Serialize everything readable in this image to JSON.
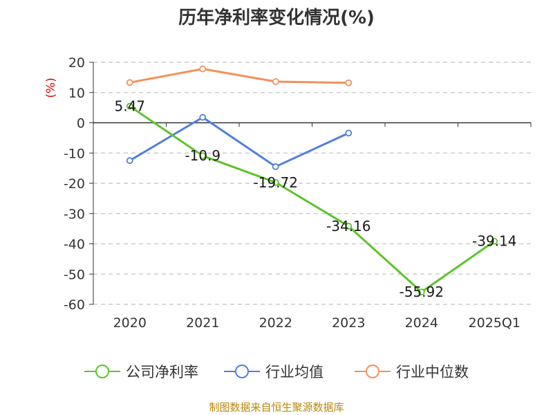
{
  "chart_data": {
    "type": "line",
    "title": "历年净利率变化情况(%)",
    "ylabel": "(%)",
    "categories": [
      "2020",
      "2021",
      "2022",
      "2023",
      "2024",
      "2025Q1"
    ],
    "ylim": [
      -60,
      20
    ],
    "yticks": [
      "20",
      "10",
      "0",
      "-10",
      "-20",
      "-30",
      "-40",
      "-50",
      "-60"
    ],
    "grid": true,
    "legend_position": "bottom",
    "series": [
      {
        "name": "公司净利率",
        "color": "#5bc429",
        "values": [
          5.47,
          -10.9,
          -19.72,
          -34.16,
          -55.92,
          -39.14
        ],
        "labels": [
          "5.47",
          "-10.9",
          "-19.72",
          "-34.16",
          "-55.92",
          "-39.14"
        ]
      },
      {
        "name": "行业均值",
        "color": "#4f7fde",
        "values": [
          -12.5,
          1.8,
          -14.5,
          -3.4,
          null,
          null
        ]
      },
      {
        "name": "行业中位数",
        "color": "#f4905a",
        "values": [
          13.3,
          17.8,
          13.6,
          13.2,
          null,
          null
        ]
      }
    ],
    "source": "制图数据来自恒生聚源数据库"
  }
}
